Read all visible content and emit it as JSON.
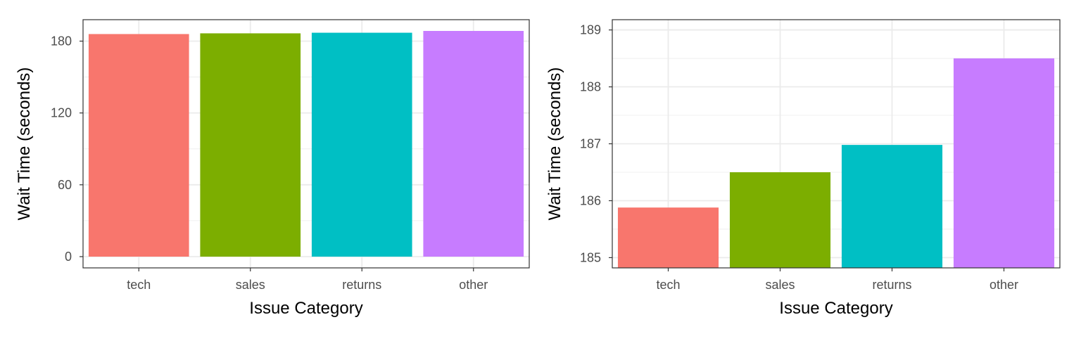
{
  "chart_data": [
    {
      "type": "bar",
      "categories": [
        "tech",
        "sales",
        "returns",
        "other"
      ],
      "values": [
        185.9,
        186.5,
        187.0,
        188.5
      ],
      "colors": [
        "#F8766D",
        "#7CAE00",
        "#00BFC4",
        "#C77CFF"
      ],
      "xlabel": "Issue Category",
      "ylabel": "Wait Time (seconds)",
      "ylim": [
        -9.4,
        197.9
      ],
      "y_ticks": [
        0,
        60,
        120,
        180
      ],
      "y_tick_labels": [
        "0",
        "60",
        "120",
        "180"
      ],
      "grid": true,
      "legend": "none"
    },
    {
      "type": "bar",
      "categories": [
        "tech",
        "sales",
        "returns",
        "other"
      ],
      "values": [
        185.88,
        186.5,
        186.98,
        188.5
      ],
      "colors": [
        "#F8766D",
        "#7CAE00",
        "#00BFC4",
        "#C77CFF"
      ],
      "xlabel": "Issue Category",
      "ylabel": "Wait Time (seconds)",
      "ylim": [
        184.82,
        189.18
      ],
      "y_ticks": [
        185,
        186,
        187,
        188,
        189
      ],
      "y_tick_labels": [
        "185",
        "186",
        "187",
        "188",
        "189"
      ],
      "grid": true,
      "legend": "none"
    }
  ]
}
